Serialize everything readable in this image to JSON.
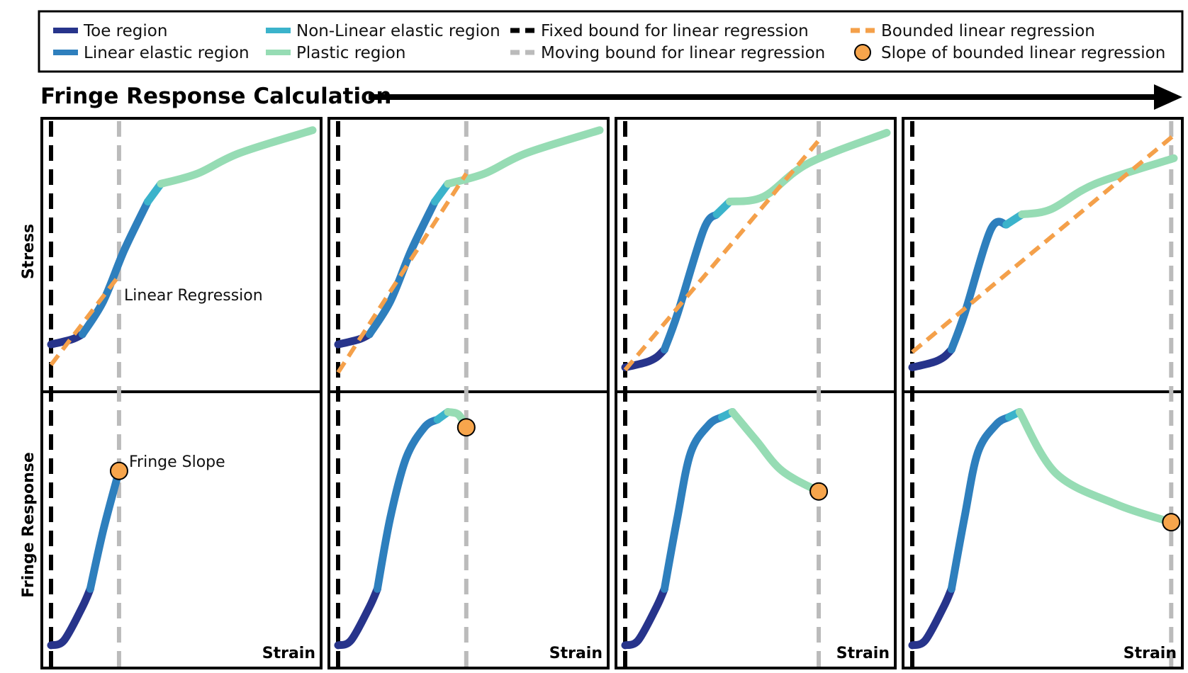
{
  "title": "Fringe Response Calculation",
  "y_labels": {
    "top": "Stress",
    "bottom": "Fringe Response"
  },
  "x_label": "Strain",
  "annotations": {
    "linear_regression": "Linear Regression",
    "fringe_slope": "Fringe Slope"
  },
  "legend": [
    {
      "key": "toe",
      "label": "Toe region",
      "swatch": "line",
      "color": "#27348b"
    },
    {
      "key": "linear",
      "label": "Linear elastic region",
      "swatch": "line",
      "color": "#2e7fbd"
    },
    {
      "key": "nonlinear",
      "label": "Non-Linear elastic region",
      "swatch": "line",
      "color": "#3bb3cb"
    },
    {
      "key": "plastic",
      "label": "Plastic region",
      "swatch": "line",
      "color": "#96dcb4"
    },
    {
      "key": "fixed",
      "label": "Fixed bound for linear regression",
      "swatch": "dash",
      "color": "#000000"
    },
    {
      "key": "moving",
      "label": "Moving bound for linear regression",
      "swatch": "dash",
      "color": "#bbbbbb"
    },
    {
      "key": "bounded",
      "label": "Bounded linear regression",
      "swatch": "dash",
      "color": "#f4a04a"
    },
    {
      "key": "slope",
      "label": "Slope of bounded linear regression",
      "swatch": "dot",
      "color": "#f7a54c"
    }
  ],
  "colors": {
    "toe": "#27348b",
    "linear": "#2e7fbd",
    "nonlinear": "#3bb3cb",
    "plastic": "#96dcb4",
    "fixed_bound": "#000000",
    "moving_bound": "#bbbbbb",
    "regression": "#f4a04a",
    "slope_marker": "#f7a54c"
  },
  "steps": [
    {
      "moving_bound": 0.26,
      "stress_curve": [
        {
          "region": "toe",
          "points": [
            [
              0,
              0.13
            ],
            [
              0.08,
              0.15
            ],
            [
              0.12,
              0.17
            ]
          ]
        },
        {
          "region": "linear",
          "points": [
            [
              0.12,
              0.17
            ],
            [
              0.2,
              0.3
            ],
            [
              0.28,
              0.5
            ],
            [
              0.37,
              0.69
            ]
          ]
        },
        {
          "region": "nonlinear",
          "points": [
            [
              0.37,
              0.69
            ],
            [
              0.42,
              0.76
            ]
          ]
        },
        {
          "region": "plastic",
          "points": [
            [
              0.42,
              0.76
            ],
            [
              0.56,
              0.8
            ],
            [
              0.72,
              0.88
            ],
            [
              1.0,
              0.97
            ]
          ]
        }
      ],
      "regression": [
        [
          0,
          0.05
        ],
        [
          0.26,
          0.4
        ]
      ],
      "fringe_curve": [
        {
          "region": "toe",
          "points": [
            [
              0,
              0.05
            ],
            [
              0.05,
              0.07
            ],
            [
              0.12,
              0.2
            ],
            [
              0.15,
              0.27
            ]
          ]
        },
        {
          "region": "linear",
          "points": [
            [
              0.15,
              0.27
            ],
            [
              0.2,
              0.5
            ],
            [
              0.26,
              0.73
            ]
          ]
        }
      ],
      "slope_point": [
        0.26,
        0.73
      ]
    },
    {
      "moving_bound": 0.49,
      "stress_curve": [
        {
          "region": "toe",
          "points": [
            [
              0,
              0.13
            ],
            [
              0.08,
              0.15
            ],
            [
              0.12,
              0.17
            ]
          ]
        },
        {
          "region": "linear",
          "points": [
            [
              0.12,
              0.17
            ],
            [
              0.2,
              0.3
            ],
            [
              0.28,
              0.5
            ],
            [
              0.37,
              0.69
            ]
          ]
        },
        {
          "region": "nonlinear",
          "points": [
            [
              0.37,
              0.69
            ],
            [
              0.42,
              0.76
            ]
          ]
        },
        {
          "region": "plastic",
          "points": [
            [
              0.42,
              0.76
            ],
            [
              0.56,
              0.8
            ],
            [
              0.72,
              0.88
            ],
            [
              1.0,
              0.97
            ]
          ]
        }
      ],
      "regression": [
        [
          0,
          0.02
        ],
        [
          0.49,
          0.8
        ]
      ],
      "fringe_curve": [
        {
          "region": "toe",
          "points": [
            [
              0,
              0.05
            ],
            [
              0.05,
              0.07
            ],
            [
              0.12,
              0.2
            ],
            [
              0.15,
              0.27
            ]
          ]
        },
        {
          "region": "linear",
          "points": [
            [
              0.15,
              0.27
            ],
            [
              0.2,
              0.55
            ],
            [
              0.26,
              0.78
            ],
            [
              0.33,
              0.9
            ],
            [
              0.38,
              0.93
            ]
          ]
        },
        {
          "region": "nonlinear",
          "points": [
            [
              0.38,
              0.93
            ],
            [
              0.42,
              0.96
            ]
          ]
        },
        {
          "region": "plastic",
          "points": [
            [
              0.42,
              0.96
            ],
            [
              0.46,
              0.95
            ],
            [
              0.49,
              0.9
            ]
          ]
        }
      ],
      "slope_point": [
        0.49,
        0.9
      ]
    },
    {
      "moving_bound": 0.74,
      "stress_curve": [
        {
          "region": "toe",
          "points": [
            [
              0,
              0.04
            ],
            [
              0.08,
              0.06
            ],
            [
              0.12,
              0.08
            ],
            [
              0.15,
              0.11
            ]
          ]
        },
        {
          "region": "linear",
          "points": [
            [
              0.15,
              0.11
            ],
            [
              0.2,
              0.25
            ],
            [
              0.3,
              0.58
            ],
            [
              0.35,
              0.64
            ]
          ]
        },
        {
          "region": "nonlinear",
          "points": [
            [
              0.35,
              0.64
            ],
            [
              0.4,
              0.69
            ]
          ]
        },
        {
          "region": "plastic",
          "points": [
            [
              0.4,
              0.69
            ],
            [
              0.53,
              0.71
            ],
            [
              0.7,
              0.84
            ],
            [
              1.0,
              0.96
            ]
          ]
        }
      ],
      "regression": [
        [
          0,
          0.03
        ],
        [
          0.74,
          0.93
        ]
      ],
      "fringe_curve": [
        {
          "region": "toe",
          "points": [
            [
              0,
              0.05
            ],
            [
              0.05,
              0.07
            ],
            [
              0.12,
              0.2
            ],
            [
              0.15,
              0.27
            ]
          ]
        },
        {
          "region": "linear",
          "points": [
            [
              0.15,
              0.27
            ],
            [
              0.2,
              0.55
            ],
            [
              0.25,
              0.8
            ],
            [
              0.32,
              0.91
            ],
            [
              0.37,
              0.94
            ]
          ]
        },
        {
          "region": "nonlinear",
          "points": [
            [
              0.37,
              0.94
            ],
            [
              0.41,
              0.96
            ]
          ]
        },
        {
          "region": "plastic",
          "points": [
            [
              0.41,
              0.96
            ],
            [
              0.5,
              0.85
            ],
            [
              0.6,
              0.73
            ],
            [
              0.74,
              0.65
            ]
          ]
        }
      ],
      "slope_point": [
        0.74,
        0.65
      ]
    },
    {
      "moving_bound": 0.99,
      "stress_curve": [
        {
          "region": "toe",
          "points": [
            [
              0,
              0.04
            ],
            [
              0.08,
              0.06
            ],
            [
              0.12,
              0.08
            ],
            [
              0.15,
              0.11
            ]
          ]
        },
        {
          "region": "linear",
          "points": [
            [
              0.15,
              0.11
            ],
            [
              0.2,
              0.25
            ],
            [
              0.3,
              0.58
            ],
            [
              0.36,
              0.6
            ]
          ]
        },
        {
          "region": "nonlinear",
          "points": [
            [
              0.36,
              0.6
            ],
            [
              0.42,
              0.64
            ]
          ]
        },
        {
          "region": "plastic",
          "points": [
            [
              0.42,
              0.64
            ],
            [
              0.53,
              0.66
            ],
            [
              0.7,
              0.76
            ],
            [
              1.0,
              0.86
            ]
          ]
        }
      ],
      "regression": [
        [
          0,
          0.1
        ],
        [
          1.0,
          0.95
        ]
      ],
      "fringe_curve": [
        {
          "region": "toe",
          "points": [
            [
              0,
              0.05
            ],
            [
              0.05,
              0.07
            ],
            [
              0.12,
              0.2
            ],
            [
              0.15,
              0.27
            ]
          ]
        },
        {
          "region": "linear",
          "points": [
            [
              0.15,
              0.27
            ],
            [
              0.2,
              0.55
            ],
            [
              0.25,
              0.8
            ],
            [
              0.32,
              0.91
            ],
            [
              0.37,
              0.94
            ]
          ]
        },
        {
          "region": "nonlinear",
          "points": [
            [
              0.37,
              0.94
            ],
            [
              0.41,
              0.96
            ]
          ]
        },
        {
          "region": "plastic",
          "points": [
            [
              0.41,
              0.96
            ],
            [
              0.55,
              0.72
            ],
            [
              0.78,
              0.6
            ],
            [
              0.99,
              0.53
            ]
          ]
        }
      ],
      "slope_point": [
        0.99,
        0.53
      ]
    }
  ]
}
